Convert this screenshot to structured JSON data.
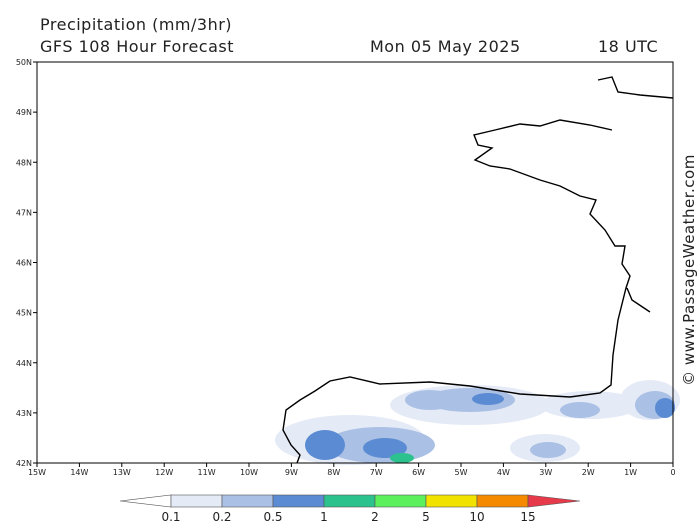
{
  "header": {
    "title": "Precipitation (mm/3hr)",
    "model": "GFS 108 Hour Forecast",
    "date": "Mon 05 May 2025",
    "time": "18 UTC"
  },
  "map": {
    "lat_labels": [
      "50N",
      "49N",
      "48N",
      "47N",
      "46N",
      "45N",
      "44N",
      "43N",
      "42N"
    ],
    "lon_labels": [
      "15W",
      "14W",
      "13W",
      "12W",
      "11W",
      "10W",
      "9W",
      "8W",
      "7W",
      "6W",
      "5W",
      "4W",
      "3W",
      "2W",
      "1W",
      "0"
    ]
  },
  "legend": {
    "labels": [
      0.1,
      0.2,
      0.5,
      1,
      2,
      5,
      10,
      15
    ],
    "colors": [
      "#ffffff",
      "#e4eaf6",
      "#aac0e4",
      "#5b8bd2",
      "#2cc28e",
      "#5cf05c",
      "#f2e200",
      "#f58a00",
      "#e63a4a"
    ]
  },
  "watermark": "© www.PassageWeather.com"
}
